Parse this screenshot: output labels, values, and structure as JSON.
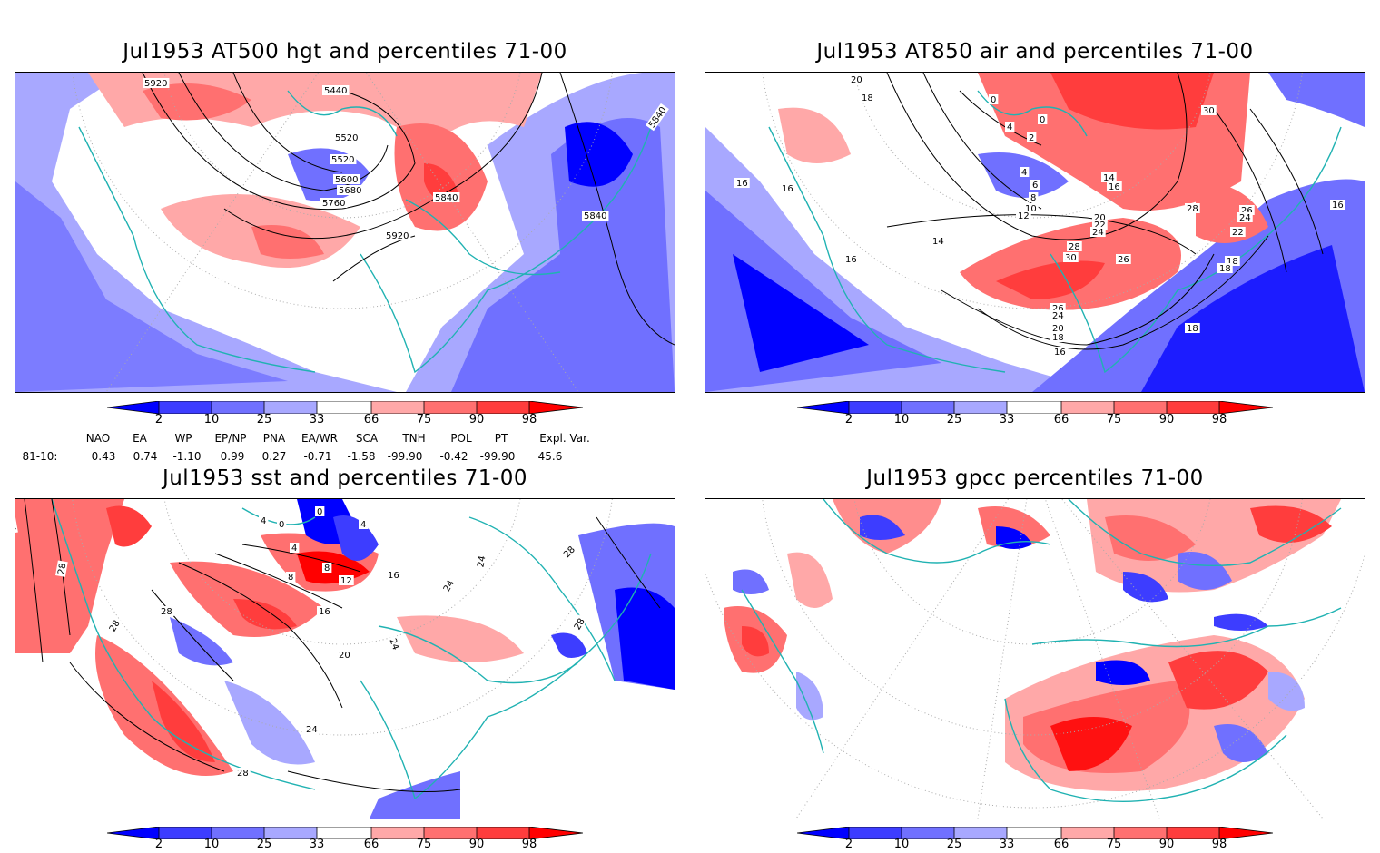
{
  "panels": {
    "p1": {
      "title": "Jul1953 AT500 hgt and percentiles 71-00",
      "contour_labels": [
        "5920",
        "5440",
        "5520",
        "5520",
        "5600",
        "5680",
        "5760",
        "5840",
        "5840",
        "5840",
        "5920"
      ]
    },
    "p2": {
      "title": "Jul1953 AT850 air and percentiles 71-00",
      "contour_labels": [
        "20",
        "18",
        "0",
        "4",
        "0",
        "2",
        "30",
        "16",
        "4",
        "6",
        "8",
        "10",
        "12",
        "14",
        "16",
        "14",
        "16",
        "28",
        "20",
        "22",
        "24",
        "26",
        "24",
        "22",
        "16",
        "18",
        "28",
        "30",
        "26",
        "26",
        "24",
        "20",
        "18",
        "16",
        "18",
        "18",
        "16"
      ]
    },
    "p3": {
      "title": "Jul1953 sst and percentiles 71-00",
      "contour_labels": [
        "24",
        "28",
        "28",
        "28",
        "4",
        "0",
        "0",
        "4",
        "4",
        "8",
        "8",
        "12",
        "16",
        "16",
        "20",
        "24",
        "24",
        "28",
        "28",
        "24",
        "28",
        "24"
      ]
    },
    "p4": {
      "title": "Jul1953 gpcc percentiles 71-00"
    }
  },
  "colorbar": {
    "ticks": [
      "2",
      "10",
      "25",
      "33",
      "66",
      "75",
      "90",
      "98"
    ],
    "colors": {
      "below2": "#0000ff",
      "c2_10": "#3d3dff",
      "c10_25": "#7070ff",
      "c25_33": "#a8a8ff",
      "neutral": "#ffffff",
      "c66_75": "#ffa8a8",
      "c75_90": "#ff7070",
      "c90_98": "#ff3d3d",
      "above98": "#ff0000"
    }
  },
  "indices": {
    "headers": [
      "NAO",
      "EA",
      "WP",
      "EP/NP",
      "PNA",
      "EA/WR",
      "SCA",
      "TNH",
      "POL",
      "PT",
      "Expl. Var."
    ],
    "row_label": "81-10:",
    "values": [
      "0.43",
      "0.74",
      "-1.10",
      "0.99",
      "0.27",
      "-0.71",
      "-1.58",
      "-99.90",
      "-0.42",
      "-99.90",
      "45.6"
    ]
  },
  "map_colors": {
    "coast": "#20b2b2",
    "contour": "#000000",
    "grid": "#aaaaaa"
  }
}
